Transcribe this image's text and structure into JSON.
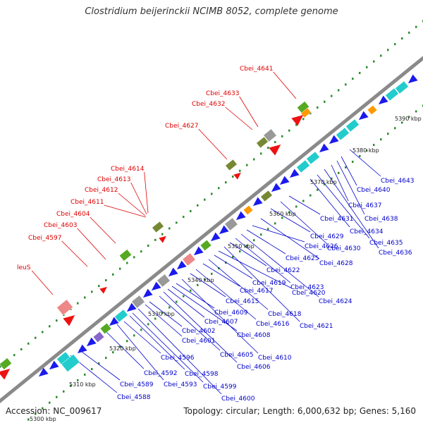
{
  "title": "Clostridium beijerinckii NCIMB 8052, complete genome",
  "footer": {
    "accession": "Accession: NC_009617",
    "summary": "Topology: circular; Length: 6,000,632 bp; Genes: 5,160"
  },
  "colors": {
    "backbone": "#8a8a8a",
    "tick_dots": "#2e8b2e",
    "label_red": "#dd0000",
    "label_blue": "#0000cc",
    "gene_blue": "#1a1aee",
    "gene_red": "#ee1111",
    "gene_cyan": "#22cccc",
    "gene_green": "#55aa22",
    "gene_olive": "#778833",
    "gene_gray": "#999999",
    "gene_pink": "#ee8888",
    "gene_orange": "#ff9900",
    "gene_purple": "#8866cc"
  },
  "scale_labels": [
    "5300 kbp",
    "5310 kbp",
    "5320 kbp",
    "5330 kbp",
    "5340 kbp",
    "5350 kbp",
    "5360 kbp",
    "5370 kbp",
    "5380 kbp",
    "5390 kbp"
  ],
  "outer_labels": [
    "leuS",
    "Cbei_4597",
    "Cbei_4603",
    "Cbei_4604",
    "Cbei_4611",
    "Cbei_4612",
    "Cbei_4613",
    "Cbei_4614",
    "Cbei_4627",
    "Cbei_4632",
    "Cbei_4633",
    "Cbei_4641"
  ],
  "inner_labels": [
    "Cbei_4588",
    "Cbei_4589",
    "Cbei_4592",
    "Cbei_4593",
    "Cbei_4596",
    "Cbei_4598",
    "Cbei_4599",
    "Cbei_4600",
    "Cbei_4601",
    "Cbei_4602",
    "Cbei_4605",
    "Cbei_4606",
    "Cbei_4607",
    "Cbei_4608",
    "Cbei_4609",
    "Cbei_4610",
    "Cbei_4615",
    "Cbei_4616",
    "Cbei_4617",
    "Cbei_4618",
    "Cbei_4619",
    "Cbei_4620",
    "Cbei_4621",
    "Cbei_4622",
    "Cbei_4623",
    "Cbei_4624",
    "Cbei_4625",
    "Cbei_4626",
    "Cbei_4628",
    "Cbei_4629",
    "Cbei_4630",
    "Cbei_4631",
    "Cbei_4634",
    "Cbei_4635",
    "Cbei_4636",
    "Cbei_4637",
    "Cbei_4638",
    "Cbei_4640",
    "Cbei_4643"
  ]
}
